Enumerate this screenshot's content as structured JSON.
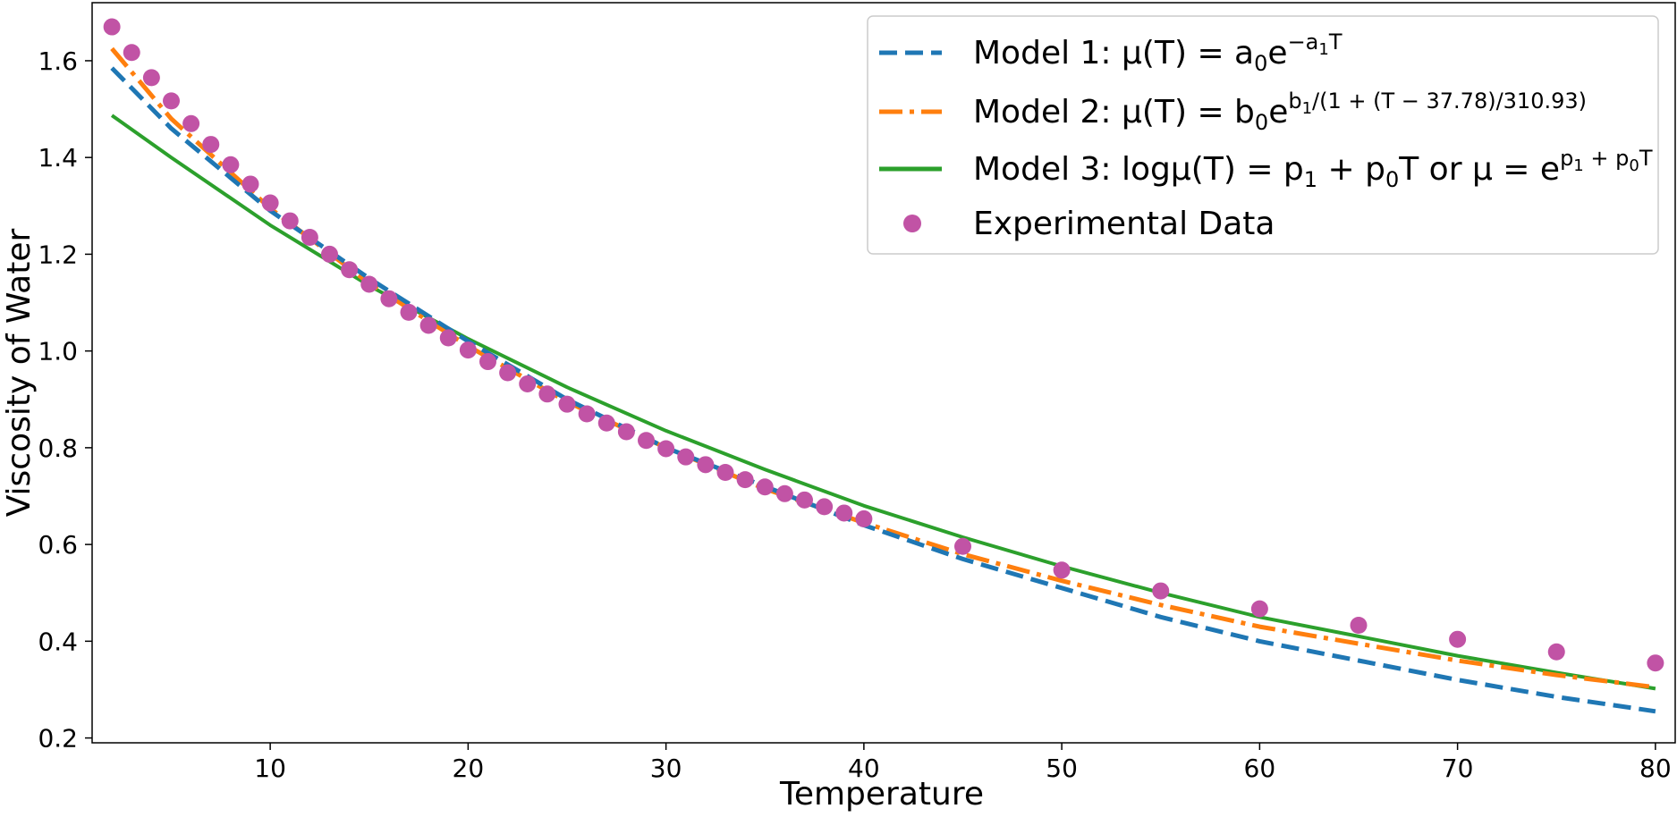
{
  "chart_data": {
    "type": "line",
    "title": "",
    "xlabel": "Temperature",
    "ylabel": "Viscosity of Water",
    "xlim": [
      1,
      81
    ],
    "ylim": [
      0.19,
      1.72
    ],
    "x_ticks": [
      10,
      20,
      30,
      40,
      50,
      60,
      70,
      80
    ],
    "y_ticks": [
      0.2,
      0.4,
      0.6,
      0.8,
      1.0,
      1.2,
      1.4,
      1.6
    ],
    "x_tick_labels": [
      "10",
      "20",
      "30",
      "40",
      "50",
      "60",
      "70",
      "80"
    ],
    "y_tick_labels": [
      "0.2",
      "0.4",
      "0.6",
      "0.8",
      "1.0",
      "1.2",
      "1.4",
      "1.6"
    ],
    "grid": false,
    "legend_position": "top-right",
    "series": [
      {
        "name": "Model 1",
        "style": "dashed",
        "color": "#1f77b4",
        "x": [
          2,
          5,
          10,
          15,
          20,
          25,
          30,
          35,
          40,
          45,
          50,
          55,
          60,
          65,
          70,
          75,
          80
        ],
        "values": [
          1.585,
          1.46,
          1.29,
          1.15,
          1.02,
          0.9,
          0.8,
          0.72,
          0.64,
          0.57,
          0.51,
          0.45,
          0.4,
          0.36,
          0.32,
          0.285,
          0.255
        ]
      },
      {
        "name": "Model 2",
        "style": "dashdot",
        "color": "#ff7f0e",
        "x": [
          2,
          5,
          10,
          15,
          20,
          25,
          30,
          35,
          40,
          45,
          50,
          55,
          60,
          65,
          70,
          75,
          80
        ],
        "values": [
          1.625,
          1.48,
          1.295,
          1.14,
          1.01,
          0.895,
          0.8,
          0.715,
          0.645,
          0.58,
          0.525,
          0.475,
          0.43,
          0.395,
          0.36,
          0.33,
          0.305
        ]
      },
      {
        "name": "Model 3",
        "style": "solid",
        "color": "#2ca02c",
        "x": [
          2,
          5,
          10,
          15,
          20,
          25,
          30,
          35,
          40,
          45,
          50,
          55,
          60,
          65,
          70,
          75,
          80
        ],
        "values": [
          1.487,
          1.4,
          1.26,
          1.135,
          1.025,
          0.925,
          0.835,
          0.755,
          0.68,
          0.615,
          0.555,
          0.5,
          0.45,
          0.41,
          0.37,
          0.335,
          0.302
        ]
      },
      {
        "name": "Experimental Data",
        "style": "scatter",
        "color": "#c153a5",
        "x": [
          2,
          3,
          4,
          5,
          6,
          7,
          8,
          9,
          10,
          11,
          12,
          13,
          14,
          15,
          16,
          17,
          18,
          19,
          20,
          21,
          22,
          23,
          24,
          25,
          26,
          27,
          28,
          29,
          30,
          31,
          32,
          33,
          34,
          35,
          36,
          37,
          38,
          39,
          40,
          45,
          50,
          55,
          60,
          65,
          70,
          75,
          80
        ],
        "values": [
          1.67,
          1.617,
          1.565,
          1.517,
          1.47,
          1.427,
          1.385,
          1.345,
          1.306,
          1.269,
          1.235,
          1.2,
          1.168,
          1.138,
          1.108,
          1.08,
          1.053,
          1.027,
          1.002,
          0.978,
          0.955,
          0.932,
          0.911,
          0.89,
          0.87,
          0.851,
          0.833,
          0.815,
          0.798,
          0.781,
          0.765,
          0.749,
          0.734,
          0.719,
          0.705,
          0.692,
          0.678,
          0.665,
          0.653,
          0.596,
          0.547,
          0.504,
          0.467,
          0.433,
          0.404,
          0.378,
          0.355
        ]
      }
    ],
    "legend": [
      {
        "key": "model1",
        "prefix": "Model 1: "
      },
      {
        "key": "model2",
        "prefix": "Model 2: "
      },
      {
        "key": "model3",
        "prefix": "Model 3: "
      },
      {
        "key": "data",
        "prefix": "Experimental Data"
      }
    ],
    "legend_formulas": {
      "model1": {
        "mu": "μ(T) = a",
        "sub0": "0",
        "e": "e",
        "sup_a": "−a",
        "sup_sub": "1",
        "sup_t": "T"
      },
      "model2": {
        "mu": "μ(T) = b",
        "sub0": "0",
        "e": "e",
        "sup_b": "b",
        "sup_sub": "1",
        "sup_rest": "/(1 + (T − 37.78)/310.93)"
      },
      "model3": {
        "log": "logμ(T) = p",
        "sub1": "1",
        "plus": " + p",
        "sub0": "0",
        "tail": "T or μ = e",
        "sup_p": "p",
        "sup_sub1": "1",
        "sup_plus": " + p",
        "sup_sub0": "0",
        "sup_t": "T"
      }
    }
  }
}
